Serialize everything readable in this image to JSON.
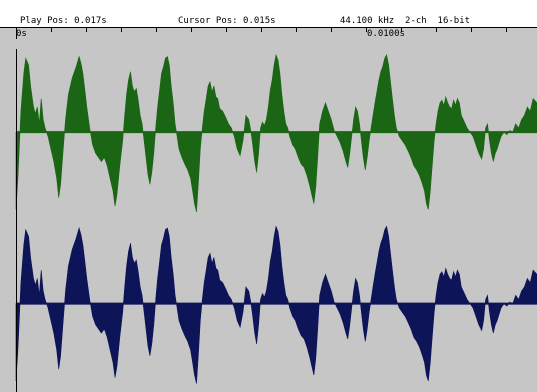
{
  "status": {
    "play_pos": "Play Pos: 0.017s",
    "cursor_pos": "Cursor Pos: 0.015s",
    "format": "44.100 kHz  2-ch  16-bit"
  },
  "ruler": {
    "labels": [
      "0s",
      "0.0100s"
    ]
  },
  "colors": {
    "background": "#c6c6c6",
    "left_channel": "#1a6614",
    "right_channel": "#0d1457",
    "center_line": "#000000"
  },
  "waveform": {
    "channels": 2,
    "points": [
      [
        0,
        -0.92
      ],
      [
        2,
        -0.55
      ],
      [
        5,
        0.25
      ],
      [
        8,
        0.7
      ],
      [
        10,
        0.88
      ],
      [
        13,
        0.8
      ],
      [
        15,
        0.55
      ],
      [
        18,
        0.3
      ],
      [
        20,
        0.22
      ],
      [
        22,
        0.3
      ],
      [
        24,
        0.1
      ],
      [
        26,
        0.4
      ],
      [
        28,
        0.15
      ],
      [
        30,
        0.05
      ],
      [
        33,
        -0.05
      ],
      [
        36,
        -0.2
      ],
      [
        39,
        -0.35
      ],
      [
        42,
        -0.55
      ],
      [
        44,
        -0.78
      ],
      [
        46,
        -0.62
      ],
      [
        48,
        -0.3
      ],
      [
        51,
        0.15
      ],
      [
        54,
        0.45
      ],
      [
        58,
        0.65
      ],
      [
        62,
        0.78
      ],
      [
        65,
        0.9
      ],
      [
        67,
        0.82
      ],
      [
        69,
        0.7
      ],
      [
        71,
        0.5
      ],
      [
        73,
        0.3
      ],
      [
        76,
        0.05
      ],
      [
        79,
        -0.15
      ],
      [
        82,
        -0.25
      ],
      [
        85,
        -0.3
      ],
      [
        88,
        -0.35
      ],
      [
        91,
        -0.3
      ],
      [
        94,
        -0.4
      ],
      [
        97,
        -0.55
      ],
      [
        100,
        -0.7
      ],
      [
        102,
        -0.88
      ],
      [
        104,
        -0.75
      ],
      [
        107,
        -0.4
      ],
      [
        110,
        -0.1
      ],
      [
        112,
        0.2
      ],
      [
        114,
        0.45
      ],
      [
        116,
        0.62
      ],
      [
        118,
        0.72
      ],
      [
        120,
        0.55
      ],
      [
        122,
        0.48
      ],
      [
        124,
        0.52
      ],
      [
        126,
        0.38
      ],
      [
        128,
        0.2
      ],
      [
        130,
        0.1
      ],
      [
        132,
        -0.1
      ],
      [
        134,
        -0.3
      ],
      [
        136,
        -0.5
      ],
      [
        138,
        -0.62
      ],
      [
        140,
        -0.48
      ],
      [
        142,
        -0.25
      ],
      [
        144,
        0.05
      ],
      [
        146,
        0.3
      ],
      [
        148,
        0.5
      ],
      [
        150,
        0.7
      ],
      [
        152,
        0.78
      ],
      [
        154,
        0.88
      ],
      [
        156,
        0.9
      ],
      [
        158,
        0.8
      ],
      [
        160,
        0.55
      ],
      [
        162,
        0.35
      ],
      [
        164,
        0.1
      ],
      [
        166,
        -0.05
      ],
      [
        168,
        -0.2
      ],
      [
        171,
        -0.3
      ],
      [
        174,
        -0.38
      ],
      [
        177,
        -0.45
      ],
      [
        180,
        -0.55
      ],
      [
        182,
        -0.7
      ],
      [
        184,
        -0.85
      ],
      [
        186,
        -0.95
      ],
      [
        188,
        -0.6
      ],
      [
        190,
        -0.2
      ],
      [
        192,
        0.05
      ],
      [
        194,
        0.25
      ],
      [
        196,
        0.4
      ],
      [
        198,
        0.55
      ],
      [
        200,
        0.6
      ],
      [
        202,
        0.48
      ],
      [
        204,
        0.55
      ],
      [
        206,
        0.42
      ],
      [
        208,
        0.4
      ],
      [
        210,
        0.28
      ],
      [
        213,
        0.25
      ],
      [
        216,
        0.18
      ],
      [
        219,
        0.1
      ],
      [
        222,
        0.05
      ],
      [
        225,
        -0.05
      ],
      [
        228,
        -0.2
      ],
      [
        231,
        -0.28
      ],
      [
        234,
        -0.1
      ],
      [
        237,
        0.2
      ],
      [
        240,
        0.15
      ],
      [
        242,
        0.02
      ],
      [
        244,
        -0.15
      ],
      [
        246,
        -0.35
      ],
      [
        248,
        -0.48
      ],
      [
        250,
        -0.25
      ],
      [
        252,
        0.05
      ],
      [
        254,
        0.12
      ],
      [
        256,
        0.08
      ],
      [
        258,
        0.15
      ],
      [
        260,
        0.3
      ],
      [
        262,
        0.5
      ],
      [
        264,
        0.62
      ],
      [
        266,
        0.8
      ],
      [
        268,
        0.92
      ],
      [
        270,
        0.86
      ],
      [
        272,
        0.7
      ],
      [
        274,
        0.45
      ],
      [
        276,
        0.25
      ],
      [
        278,
        0.1
      ],
      [
        280,
        0.05
      ],
      [
        282,
        -0.05
      ],
      [
        285,
        -0.15
      ],
      [
        288,
        -0.2
      ],
      [
        291,
        -0.3
      ],
      [
        294,
        -0.38
      ],
      [
        297,
        -0.42
      ],
      [
        300,
        -0.52
      ],
      [
        303,
        -0.65
      ],
      [
        305,
        -0.75
      ],
      [
        307,
        -0.85
      ],
      [
        309,
        -0.65
      ],
      [
        311,
        -0.3
      ],
      [
        313,
        0.1
      ],
      [
        316,
        0.25
      ],
      [
        319,
        0.35
      ],
      [
        322,
        0.25
      ],
      [
        325,
        0.15
      ],
      [
        328,
        0.02
      ],
      [
        331,
        -0.05
      ],
      [
        334,
        -0.12
      ],
      [
        337,
        -0.22
      ],
      [
        340,
        -0.35
      ],
      [
        342,
        -0.42
      ],
      [
        344,
        -0.25
      ],
      [
        346,
        -0.05
      ],
      [
        348,
        0.15
      ],
      [
        350,
        0.3
      ],
      [
        352,
        0.25
      ],
      [
        354,
        0.1
      ],
      [
        356,
        -0.1
      ],
      [
        358,
        -0.3
      ],
      [
        360,
        -0.45
      ],
      [
        362,
        -0.3
      ],
      [
        364,
        -0.1
      ],
      [
        366,
        0.05
      ],
      [
        368,
        0.2
      ],
      [
        370,
        0.35
      ],
      [
        372,
        0.48
      ],
      [
        374,
        0.62
      ],
      [
        376,
        0.72
      ],
      [
        378,
        0.78
      ],
      [
        380,
        0.88
      ],
      [
        382,
        0.92
      ],
      [
        384,
        0.8
      ],
      [
        386,
        0.6
      ],
      [
        388,
        0.4
      ],
      [
        390,
        0.2
      ],
      [
        392,
        0.05
      ],
      [
        395,
        -0.05
      ],
      [
        398,
        -0.1
      ],
      [
        401,
        -0.15
      ],
      [
        404,
        -0.22
      ],
      [
        407,
        -0.3
      ],
      [
        410,
        -0.4
      ],
      [
        413,
        -0.45
      ],
      [
        416,
        -0.52
      ],
      [
        419,
        -0.62
      ],
      [
        421,
        -0.7
      ],
      [
        423,
        -0.85
      ],
      [
        425,
        -0.92
      ],
      [
        427,
        -0.7
      ],
      [
        429,
        -0.4
      ],
      [
        431,
        -0.1
      ],
      [
        433,
        0.1
      ],
      [
        435,
        0.25
      ],
      [
        437,
        0.35
      ],
      [
        439,
        0.38
      ],
      [
        441,
        0.32
      ],
      [
        443,
        0.42
      ],
      [
        445,
        0.35
      ],
      [
        447,
        0.3
      ],
      [
        449,
        0.28
      ],
      [
        451,
        0.38
      ],
      [
        453,
        0.32
      ],
      [
        455,
        0.4
      ],
      [
        457,
        0.35
      ],
      [
        459,
        0.2
      ],
      [
        461,
        0.15
      ],
      [
        463,
        0.1
      ],
      [
        465,
        0.05
      ],
      [
        468,
        0.0
      ],
      [
        471,
        -0.05
      ],
      [
        474,
        -0.15
      ],
      [
        477,
        -0.25
      ],
      [
        480,
        -0.32
      ],
      [
        482,
        -0.2
      ],
      [
        484,
        0.05
      ],
      [
        486,
        0.1
      ],
      [
        488,
        -0.1
      ],
      [
        490,
        -0.25
      ],
      [
        492,
        -0.35
      ],
      [
        494,
        -0.25
      ],
      [
        496,
        -0.2
      ],
      [
        498,
        -0.12
      ],
      [
        500,
        -0.05
      ],
      [
        503,
        0.0
      ],
      [
        506,
        -0.03
      ],
      [
        509,
        0.02
      ],
      [
        512,
        0.0
      ],
      [
        515,
        0.1
      ],
      [
        518,
        0.05
      ],
      [
        521,
        0.15
      ],
      [
        524,
        0.2
      ],
      [
        527,
        0.3
      ],
      [
        530,
        0.25
      ],
      [
        533,
        0.4
      ],
      [
        537,
        0.35
      ]
    ]
  }
}
